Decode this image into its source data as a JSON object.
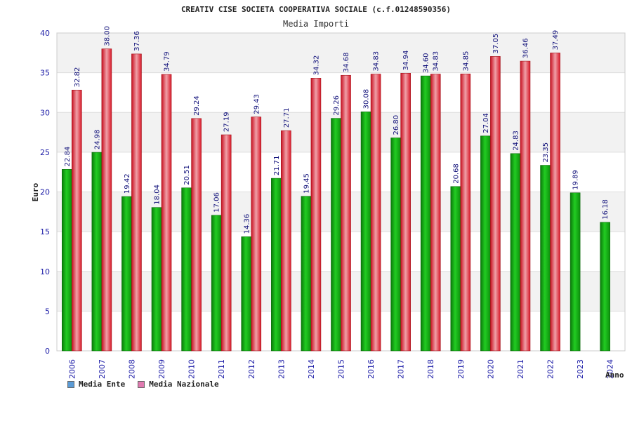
{
  "chart_data": {
    "type": "bar",
    "title": "CREATIV CISE SOCIETA COOPERATIVA SOCIALE (c.f.01248590356)",
    "subtitle": "Media Importi",
    "ylabel": "Euro",
    "xlabel": "Anno",
    "ylim": [
      0,
      40
    ],
    "yticks": [
      0,
      5,
      10,
      15,
      20,
      25,
      30,
      35,
      40
    ],
    "categories": [
      "2006",
      "2007",
      "2008",
      "2009",
      "2010",
      "2011",
      "2012",
      "2013",
      "2014",
      "2015",
      "2016",
      "2017",
      "2018",
      "2019",
      "2020",
      "2021",
      "2022",
      "2023",
      "2024"
    ],
    "series": [
      {
        "name": "Media Ente",
        "color": "#19b319",
        "values": [
          22.84,
          24.98,
          19.42,
          18.04,
          20.51,
          17.06,
          14.36,
          21.71,
          19.45,
          29.26,
          30.08,
          26.8,
          34.6,
          20.68,
          27.04,
          24.83,
          23.35,
          19.89,
          16.18
        ],
        "labels": [
          "22.84",
          "24.98",
          "19.42",
          "18.04",
          "20.51",
          "17.06",
          "14.36",
          "21.71",
          "19.45",
          "29.26",
          "30.08",
          "26.80",
          "34.60",
          "20.68",
          "27.04",
          "24.83",
          "23.35",
          "19.89",
          "16.18"
        ]
      },
      {
        "name": "Media Nazionale",
        "color": "#e8323c",
        "values": [
          32.82,
          38.0,
          37.36,
          34.79,
          29.24,
          27.19,
          29.43,
          27.71,
          34.32,
          34.68,
          34.83,
          34.94,
          34.83,
          34.85,
          37.05,
          36.46,
          37.49,
          null,
          null
        ],
        "labels": [
          "32.82",
          "38.00",
          "37.36",
          "34.79",
          "29.24",
          "27.19",
          "29.43",
          "27.71",
          "34.32",
          "34.68",
          "34.83",
          "34.94",
          "34.83",
          "34.85",
          "37.05",
          "36.46",
          "37.49",
          "",
          ""
        ]
      }
    ],
    "legend": [
      {
        "label": "Media Ente",
        "color": "#5b9bd5"
      },
      {
        "label": "Media Nazionale",
        "color": "#e07ab0"
      }
    ]
  }
}
